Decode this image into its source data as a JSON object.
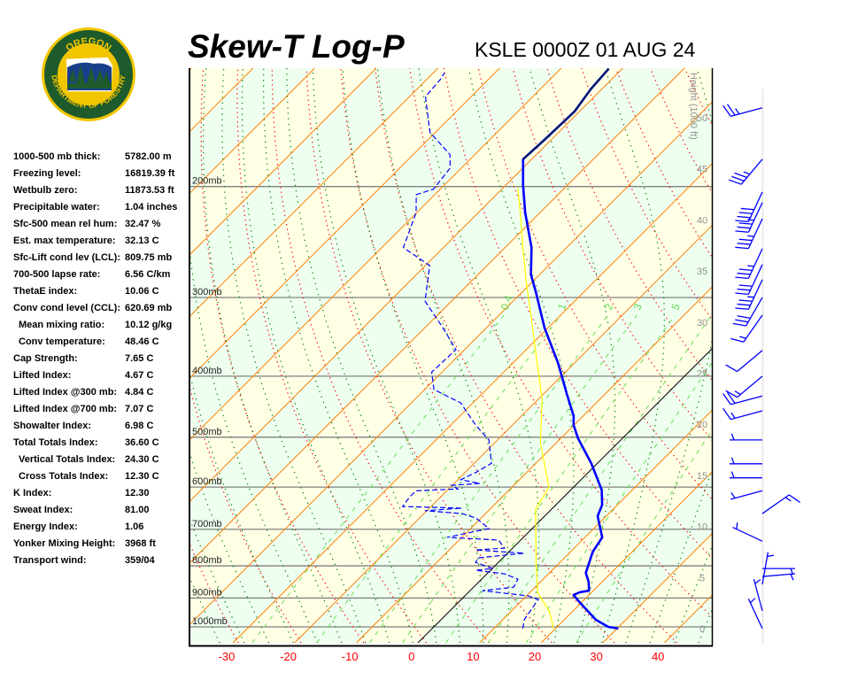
{
  "header": {
    "title": "Skew-T Log-P",
    "station": "KSLE 0000Z 01 AUG 24"
  },
  "logo": {
    "top_text": "OREGON",
    "bottom_text": "DEPARTMENT OF FORESTRY",
    "colors": {
      "ring": "#1e5b2c",
      "border": "#f2c500",
      "sky": "#1a3f8a"
    }
  },
  "stats": [
    {
      "label": "1000-500 mb thick:",
      "value": "5782.00 m",
      "indent": false
    },
    {
      "label": "Freezing level:",
      "value": "16819.39 ft",
      "indent": false
    },
    {
      "label": "Wetbulb zero:",
      "value": "11873.53 ft",
      "indent": false
    },
    {
      "label": "Precipitable water:",
      "value": "1.04 inches",
      "indent": false
    },
    {
      "label": "Sfc-500 mean rel hum:",
      "value": "32.47 %",
      "indent": false
    },
    {
      "label": "Est. max temperature:",
      "value": "32.13 C",
      "indent": false
    },
    {
      "label": "Sfc-Lift cond lev (LCL):",
      "value": "809.75 mb",
      "indent": false
    },
    {
      "label": "700-500 lapse rate:",
      "value": "6.56 C/km",
      "indent": false
    },
    {
      "label": "ThetaE index:",
      "value": "10.06 C",
      "indent": false
    },
    {
      "label": "Conv cond level (CCL):",
      "value": "620.69 mb",
      "indent": false
    },
    {
      "label": "Mean mixing ratio:",
      "value": "10.12 g/kg",
      "indent": true
    },
    {
      "label": "Conv temperature:",
      "value": "48.46 C",
      "indent": true
    },
    {
      "label": "Cap Strength:",
      "value": "7.65 C",
      "indent": false
    },
    {
      "label": "Lifted Index:",
      "value": "4.67 C",
      "indent": false
    },
    {
      "label": "Lifted Index @300 mb:",
      "value": "4.84 C",
      "indent": false
    },
    {
      "label": "Lifted Index @700 mb:",
      "value": "7.07 C",
      "indent": false
    },
    {
      "label": "Showalter Index:",
      "value": "6.98 C",
      "indent": false
    },
    {
      "label": "Total Totals Index:",
      "value": "36.60 C",
      "indent": false
    },
    {
      "label": "Vertical Totals Index:",
      "value": "24.30 C",
      "indent": true
    },
    {
      "label": "Cross Totals Index:",
      "value": "12.30 C",
      "indent": true
    },
    {
      "label": "K Index:",
      "value": "12.30",
      "indent": false
    },
    {
      "label": "Sweat Index:",
      "value": "81.00",
      "indent": false
    },
    {
      "label": "Energy Index:",
      "value": "1.06",
      "indent": false
    },
    {
      "label": "Yonker Mixing Height:",
      "value": "3968 ft",
      "indent": false
    },
    {
      "label": "Transport wind:",
      "value": "359/04",
      "indent": false
    }
  ],
  "chart_data": {
    "type": "skew-t",
    "pressure_range_mb": [
      1006,
      130
    ],
    "isobars": [
      {
        "p": 1000,
        "label": "1000mb"
      },
      {
        "p": 900,
        "label": "900mb"
      },
      {
        "p": 800,
        "label": "800mb"
      },
      {
        "p": 700,
        "label": "700mb"
      },
      {
        "p": 600,
        "label": "600mb"
      },
      {
        "p": 500,
        "label": "500mb"
      },
      {
        "p": 400,
        "label": "400mb"
      },
      {
        "p": 300,
        "label": "300mb"
      },
      {
        "p": 200,
        "label": "200mb"
      }
    ],
    "x_ticks": [
      -30,
      -20,
      -10,
      0,
      10,
      20,
      30,
      40
    ],
    "height_axis": {
      "label": "Height (1000 ft)",
      "ticks": [
        0,
        5,
        10,
        15,
        20,
        25,
        30,
        35,
        40,
        45,
        50
      ]
    },
    "mixing_ratio_labels": [
      "0.4",
      "1",
      "2",
      "3",
      "5"
    ],
    "mixing_ratio_values": [
      0.4,
      1,
      2,
      3,
      5,
      8,
      12,
      20
    ],
    "colors": {
      "temperature": "#0000ff",
      "dewpoint": "#0000ff",
      "wetbulb": "#ffff00",
      "isotherm": "#ff8000",
      "zero_isotherm": "#000000",
      "dry_adiabat": "#ff0000",
      "moist_adiabat": "#008000",
      "mixing_ratio": "#66dd55",
      "isobar": "#808080",
      "band_warm": "#ffffe6",
      "band_cool": "#eefff0",
      "tick_label": "#ff0000",
      "height_label": "#909090"
    },
    "temperature": [
      [
        1006,
        30.2
      ],
      [
        1000,
        28.3
      ],
      [
        974,
        25.1
      ],
      [
        910,
        19.3
      ],
      [
        890,
        17.5
      ],
      [
        881,
        18.1
      ],
      [
        876,
        19.3
      ],
      [
        848,
        17.8
      ],
      [
        821,
        15.9
      ],
      [
        760,
        13.6
      ],
      [
        721,
        12.8
      ],
      [
        667,
        8.6
      ],
      [
        640,
        7.5
      ],
      [
        606,
        5.0
      ],
      [
        550,
        -1.0
      ],
      [
        502,
        -7.2
      ],
      [
        478,
        -10.1
      ],
      [
        463,
        -11.5
      ],
      [
        427,
        -16.2
      ],
      [
        381,
        -22.7
      ],
      [
        335,
        -30.6
      ],
      [
        294,
        -37.8
      ],
      [
        276,
        -41.4
      ],
      [
        250,
        -45.7
      ],
      [
        220,
        -52.4
      ],
      [
        199,
        -57.2
      ],
      [
        181,
        -61.4
      ],
      [
        169,
        -61.1
      ],
      [
        152,
        -60.8
      ],
      [
        140,
        -61.8
      ],
      [
        130,
        -62.2
      ]
    ],
    "dewpoint": [
      [
        1006,
        14.7
      ],
      [
        974,
        13.5
      ],
      [
        905,
        12.5
      ],
      [
        893,
        10.3
      ],
      [
        876,
        2.0
      ],
      [
        865,
        6.5
      ],
      [
        840,
        5.9
      ],
      [
        824,
        2.9
      ],
      [
        813,
        -2.4
      ],
      [
        808,
        0.1
      ],
      [
        790,
        -3.7
      ],
      [
        777,
        -4.0
      ],
      [
        764,
        2.7
      ],
      [
        755,
        -5.7
      ],
      [
        750,
        -1.3
      ],
      [
        728,
        -3.6
      ],
      [
        721,
        -12.4
      ],
      [
        698,
        -7.0
      ],
      [
        672,
        -10.8
      ],
      [
        661,
        -13.8
      ],
      [
        654,
        -20.3
      ],
      [
        648,
        -14.7
      ],
      [
        644,
        -24.6
      ],
      [
        623,
        -25.0
      ],
      [
        608,
        -25.0
      ],
      [
        604,
        -18.5
      ],
      [
        596,
        -20.1
      ],
      [
        592,
        -15.8
      ],
      [
        584,
        -19.5
      ],
      [
        568,
        -18.2
      ],
      [
        550,
        -17.2
      ],
      [
        505,
        -21.4
      ],
      [
        478,
        -26.0
      ],
      [
        441,
        -32.0
      ],
      [
        420,
        -38.5
      ],
      [
        394,
        -41.7
      ],
      [
        363,
        -41.4
      ],
      [
        335,
        -47.1
      ],
      [
        304,
        -54.3
      ],
      [
        267,
        -59.3
      ],
      [
        250,
        -66.5
      ],
      [
        220,
        -70.1
      ],
      [
        206,
        -73.0
      ],
      [
        202,
        -71.1
      ],
      [
        187,
        -71.8
      ],
      [
        178,
        -74.0
      ],
      [
        164,
        -80.9
      ],
      [
        144,
        -87.4
      ],
      [
        135,
        -87.8
      ],
      [
        132,
        -88.2
      ]
    ],
    "wetbulb": [
      [
        1006,
        19.7
      ],
      [
        943,
        16.1
      ],
      [
        884,
        11.4
      ],
      [
        802,
        6.8
      ],
      [
        650,
        -2.6
      ],
      [
        600,
        -4.0
      ],
      [
        510,
        -12.6
      ],
      [
        434,
        -19.5
      ],
      [
        369,
        -27.7
      ],
      [
        324,
        -34.2
      ],
      [
        285,
        -40.7
      ],
      [
        250,
        -47.1
      ],
      [
        220,
        -53.2
      ],
      [
        201,
        -57.6
      ]
    ],
    "winds": [
      [
        150,
        255,
        25
      ],
      [
        181,
        220,
        35
      ],
      [
        204,
        205,
        40
      ],
      [
        212,
        205,
        35
      ],
      [
        225,
        205,
        35
      ],
      [
        251,
        205,
        35
      ],
      [
        266,
        205,
        30
      ],
      [
        281,
        205,
        35
      ],
      [
        300,
        210,
        30
      ],
      [
        320,
        215,
        15
      ],
      [
        364,
        230,
        10
      ],
      [
        400,
        230,
        15
      ],
      [
        430,
        255,
        20
      ],
      [
        454,
        255,
        15
      ],
      [
        505,
        270,
        5
      ],
      [
        551,
        270,
        5
      ],
      [
        580,
        270,
        5
      ],
      [
        608,
        255,
        5
      ],
      [
        661,
        55,
        15
      ],
      [
        731,
        295,
        3
      ],
      [
        808,
        90,
        5
      ],
      [
        832,
        85,
        5
      ],
      [
        856,
        10,
        5
      ],
      [
        943,
        345,
        5
      ],
      [
        1006,
        335,
        5
      ]
    ]
  }
}
